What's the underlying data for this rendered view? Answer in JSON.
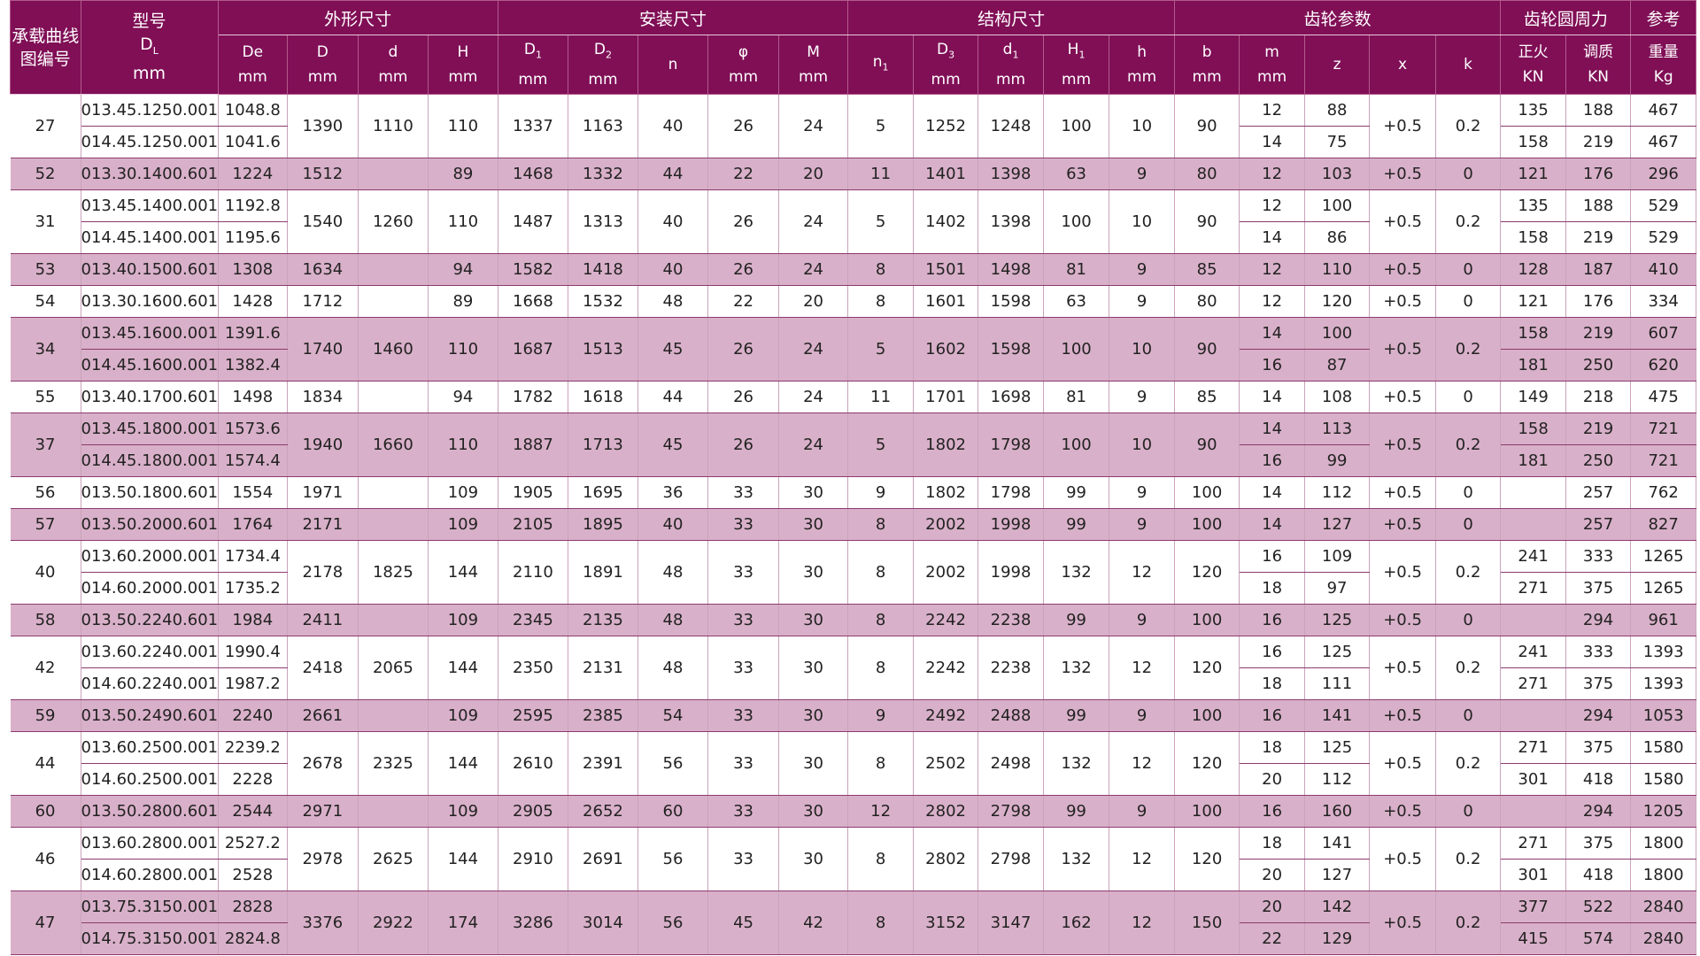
{
  "header": {
    "group1": {
      "label": "承载曲线图编号"
    },
    "group2": {
      "label": "型号",
      "sub": "DL",
      "unit": "mm"
    },
    "groups": [
      {
        "key": "outer",
        "label": "外形尺寸",
        "cols": [
          {
            "label": "De",
            "unit": "mm"
          },
          {
            "label": "D",
            "unit": "mm"
          },
          {
            "label": "d",
            "unit": "mm"
          },
          {
            "label": "H",
            "unit": "mm"
          }
        ]
      },
      {
        "key": "install",
        "label": "安装尺寸",
        "cols": [
          {
            "label": "D1",
            "unit": "mm"
          },
          {
            "label": "D2",
            "unit": "mm"
          },
          {
            "label": "n",
            "unit": ""
          },
          {
            "label": "φ",
            "unit": "mm"
          },
          {
            "label": "M",
            "unit": "mm"
          }
        ]
      },
      {
        "key": "struct",
        "label": "结构尺寸",
        "cols": [
          {
            "label": "n1",
            "unit": ""
          },
          {
            "label": "D3",
            "unit": "mm"
          },
          {
            "label": "d1",
            "unit": "mm"
          },
          {
            "label": "H1",
            "unit": "mm"
          },
          {
            "label": "h",
            "unit": "mm"
          }
        ]
      },
      {
        "key": "gear",
        "label": "齿轮参数",
        "cols": [
          {
            "label": "b",
            "unit": "mm"
          },
          {
            "label": "m",
            "unit": "mm"
          },
          {
            "label": "z",
            "unit": ""
          },
          {
            "label": "x",
            "unit": ""
          },
          {
            "label": "k",
            "unit": ""
          }
        ]
      },
      {
        "key": "force",
        "label": "齿轮圆周力",
        "cols": [
          {
            "label": "正火",
            "unit": "KN"
          },
          {
            "label": "调质",
            "unit": "KN"
          }
        ]
      },
      {
        "key": "weight",
        "label": "参考",
        "cols": [
          {
            "label": "重量",
            "unit": "Kg"
          }
        ]
      }
    ]
  },
  "groups": [
    {
      "id": "27",
      "pink": false,
      "D": "1390",
      "d": "1110",
      "H": "110",
      "D1": "1337",
      "D2": "1163",
      "n": "40",
      "phi": "26",
      "M": "24",
      "n1": "5",
      "D3": "1252",
      "d1": "1248",
      "H1": "100",
      "h": "10",
      "b": "90",
      "x": "+0.5",
      "k": "0.2",
      "rows": [
        {
          "model": "013.45.1250.001",
          "De": "1048.8",
          "m": "12",
          "z": "88",
          "f1": "135",
          "f2": "188",
          "w": "467"
        },
        {
          "model": "014.45.1250.001",
          "De": "1041.6",
          "m": "14",
          "z": "75",
          "f1": "158",
          "f2": "219",
          "w": "467"
        }
      ]
    },
    {
      "id": "52",
      "pink": true,
      "D": "1512",
      "d": "",
      "H": "89",
      "D1": "1468",
      "D2": "1332",
      "n": "44",
      "phi": "22",
      "M": "20",
      "n1": "11",
      "D3": "1401",
      "d1": "1398",
      "H1": "63",
      "h": "9",
      "b": "80",
      "x": "+0.5",
      "k": "0",
      "rows": [
        {
          "model": "013.30.1400.601",
          "De": "1224",
          "m": "12",
          "z": "103",
          "f1": "121",
          "f2": "176",
          "w": "296"
        }
      ]
    },
    {
      "id": "31",
      "pink": false,
      "D": "1540",
      "d": "1260",
      "H": "110",
      "D1": "1487",
      "D2": "1313",
      "n": "40",
      "phi": "26",
      "M": "24",
      "n1": "5",
      "D3": "1402",
      "d1": "1398",
      "H1": "100",
      "h": "10",
      "b": "90",
      "x": "+0.5",
      "k": "0.2",
      "rows": [
        {
          "model": "013.45.1400.001",
          "De": "1192.8",
          "m": "12",
          "z": "100",
          "f1": "135",
          "f2": "188",
          "w": "529"
        },
        {
          "model": "014.45.1400.001",
          "De": "1195.6",
          "m": "14",
          "z": "86",
          "f1": "158",
          "f2": "219",
          "w": "529"
        }
      ]
    },
    {
      "id": "53",
      "pink": true,
      "D": "1634",
      "d": "",
      "H": "94",
      "D1": "1582",
      "D2": "1418",
      "n": "40",
      "phi": "26",
      "M": "24",
      "n1": "8",
      "D3": "1501",
      "d1": "1498",
      "H1": "81",
      "h": "9",
      "b": "85",
      "x": "+0.5",
      "k": "0",
      "rows": [
        {
          "model": "013.40.1500.601",
          "De": "1308",
          "m": "12",
          "z": "110",
          "f1": "128",
          "f2": "187",
          "w": "410"
        }
      ]
    },
    {
      "id": "54",
      "pink": false,
      "D": "1712",
      "d": "",
      "H": "89",
      "D1": "1668",
      "D2": "1532",
      "n": "48",
      "phi": "22",
      "M": "20",
      "n1": "8",
      "D3": "1601",
      "d1": "1598",
      "H1": "63",
      "h": "9",
      "b": "80",
      "x": "+0.5",
      "k": "0",
      "rows": [
        {
          "model": "013.30.1600.601",
          "De": "1428",
          "m": "12",
          "z": "120",
          "f1": "121",
          "f2": "176",
          "w": "334"
        }
      ]
    },
    {
      "id": "34",
      "pink": true,
      "D": "1740",
      "d": "1460",
      "H": "110",
      "D1": "1687",
      "D2": "1513",
      "n": "45",
      "phi": "26",
      "M": "24",
      "n1": "5",
      "D3": "1602",
      "d1": "1598",
      "H1": "100",
      "h": "10",
      "b": "90",
      "x": "+0.5",
      "k": "0.2",
      "rows": [
        {
          "model": "013.45.1600.001",
          "De": "1391.6",
          "m": "14",
          "z": "100",
          "f1": "158",
          "f2": "219",
          "w": "607"
        },
        {
          "model": "014.45.1600.001",
          "De": "1382.4",
          "m": "16",
          "z": "87",
          "f1": "181",
          "f2": "250",
          "w": "620"
        }
      ]
    },
    {
      "id": "55",
      "pink": false,
      "D": "1834",
      "d": "",
      "H": "94",
      "D1": "1782",
      "D2": "1618",
      "n": "44",
      "phi": "26",
      "M": "24",
      "n1": "11",
      "D3": "1701",
      "d1": "1698",
      "H1": "81",
      "h": "9",
      "b": "85",
      "x": "+0.5",
      "k": "0",
      "rows": [
        {
          "model": "013.40.1700.601",
          "De": "1498",
          "m": "14",
          "z": "108",
          "f1": "149",
          "f2": "218",
          "w": "475"
        }
      ]
    },
    {
      "id": "37",
      "pink": true,
      "D": "1940",
      "d": "1660",
      "H": "110",
      "D1": "1887",
      "D2": "1713",
      "n": "45",
      "phi": "26",
      "M": "24",
      "n1": "5",
      "D3": "1802",
      "d1": "1798",
      "H1": "100",
      "h": "10",
      "b": "90",
      "x": "+0.5",
      "k": "0.2",
      "rows": [
        {
          "model": "013.45.1800.001",
          "De": "1573.6",
          "m": "14",
          "z": "113",
          "f1": "158",
          "f2": "219",
          "w": "721"
        },
        {
          "model": "014.45.1800.001",
          "De": "1574.4",
          "m": "16",
          "z": "99",
          "f1": "181",
          "f2": "250",
          "w": "721"
        }
      ]
    },
    {
      "id": "56",
      "pink": false,
      "D": "1971",
      "d": "",
      "H": "109",
      "D1": "1905",
      "D2": "1695",
      "n": "36",
      "phi": "33",
      "M": "30",
      "n1": "9",
      "D3": "1802",
      "d1": "1798",
      "H1": "99",
      "h": "9",
      "b": "100",
      "x": "+0.5",
      "k": "0",
      "rows": [
        {
          "model": "013.50.1800.601",
          "De": "1554",
          "m": "14",
          "z": "112",
          "f1": "",
          "f2": "257",
          "w": "762"
        }
      ]
    },
    {
      "id": "57",
      "pink": true,
      "D": "2171",
      "d": "",
      "H": "109",
      "D1": "2105",
      "D2": "1895",
      "n": "40",
      "phi": "33",
      "M": "30",
      "n1": "8",
      "D3": "2002",
      "d1": "1998",
      "H1": "99",
      "h": "9",
      "b": "100",
      "x": "+0.5",
      "k": "0",
      "rows": [
        {
          "model": "013.50.2000.601",
          "De": "1764",
          "m": "14",
          "z": "127",
          "f1": "",
          "f2": "257",
          "w": "827"
        }
      ]
    },
    {
      "id": "40",
      "pink": false,
      "D": "2178",
      "d": "1825",
      "H": "144",
      "D1": "2110",
      "D2": "1891",
      "n": "48",
      "phi": "33",
      "M": "30",
      "n1": "8",
      "D3": "2002",
      "d1": "1998",
      "H1": "132",
      "h": "12",
      "b": "120",
      "x": "+0.5",
      "k": "0.2",
      "rows": [
        {
          "model": "013.60.2000.001",
          "De": "1734.4",
          "m": "16",
          "z": "109",
          "f1": "241",
          "f2": "333",
          "w": "1265"
        },
        {
          "model": "014.60.2000.001",
          "De": "1735.2",
          "m": "18",
          "z": "97",
          "f1": "271",
          "f2": "375",
          "w": "1265"
        }
      ]
    },
    {
      "id": "58",
      "pink": true,
      "D": "2411",
      "d": "",
      "H": "109",
      "D1": "2345",
      "D2": "2135",
      "n": "48",
      "phi": "33",
      "M": "30",
      "n1": "8",
      "D3": "2242",
      "d1": "2238",
      "H1": "99",
      "h": "9",
      "b": "100",
      "x": "+0.5",
      "k": "0",
      "rows": [
        {
          "model": "013.50.2240.601",
          "De": "1984",
          "m": "16",
          "z": "125",
          "f1": "",
          "f2": "294",
          "w": "961"
        }
      ]
    },
    {
      "id": "42",
      "pink": false,
      "D": "2418",
      "d": "2065",
      "H": "144",
      "D1": "2350",
      "D2": "2131",
      "n": "48",
      "phi": "33",
      "M": "30",
      "n1": "8",
      "D3": "2242",
      "d1": "2238",
      "H1": "132",
      "h": "12",
      "b": "120",
      "x": "+0.5",
      "k": "0.2",
      "rows": [
        {
          "model": "013.60.2240.001",
          "De": "1990.4",
          "m": "16",
          "z": "125",
          "f1": "241",
          "f2": "333",
          "w": "1393"
        },
        {
          "model": "014.60.2240.001",
          "De": "1987.2",
          "m": "18",
          "z": "111",
          "f1": "271",
          "f2": "375",
          "w": "1393"
        }
      ]
    },
    {
      "id": "59",
      "pink": true,
      "D": "2661",
      "d": "",
      "H": "109",
      "D1": "2595",
      "D2": "2385",
      "n": "54",
      "phi": "33",
      "M": "30",
      "n1": "9",
      "D3": "2492",
      "d1": "2488",
      "H1": "99",
      "h": "9",
      "b": "100",
      "x": "+0.5",
      "k": "0",
      "rows": [
        {
          "model": "013.50.2490.601",
          "De": "2240",
          "m": "16",
          "z": "141",
          "f1": "",
          "f2": "294",
          "w": "1053"
        }
      ]
    },
    {
      "id": "44",
      "pink": false,
      "D": "2678",
      "d": "2325",
      "H": "144",
      "D1": "2610",
      "D2": "2391",
      "n": "56",
      "phi": "33",
      "M": "30",
      "n1": "8",
      "D3": "2502",
      "d1": "2498",
      "H1": "132",
      "h": "12",
      "b": "120",
      "x": "+0.5",
      "k": "0.2",
      "rows": [
        {
          "model": "013.60.2500.001",
          "De": "2239.2",
          "m": "18",
          "z": "125",
          "f1": "271",
          "f2": "375",
          "w": "1580"
        },
        {
          "model": "014.60.2500.001",
          "De": "2228",
          "m": "20",
          "z": "112",
          "f1": "301",
          "f2": "418",
          "w": "1580"
        }
      ]
    },
    {
      "id": "60",
      "pink": true,
      "D": "2971",
      "d": "",
      "H": "109",
      "D1": "2905",
      "D2": "2652",
      "n": "60",
      "phi": "33",
      "M": "30",
      "n1": "12",
      "D3": "2802",
      "d1": "2798",
      "H1": "99",
      "h": "9",
      "b": "100",
      "x": "+0.5",
      "k": "0",
      "rows": [
        {
          "model": "013.50.2800.601",
          "De": "2544",
          "m": "16",
          "z": "160",
          "f1": "",
          "f2": "294",
          "w": "1205"
        }
      ]
    },
    {
      "id": "46",
      "pink": false,
      "D": "2978",
      "d": "2625",
      "H": "144",
      "D1": "2910",
      "D2": "2691",
      "n": "56",
      "phi": "33",
      "M": "30",
      "n1": "8",
      "D3": "2802",
      "d1": "2798",
      "H1": "132",
      "h": "12",
      "b": "120",
      "x": "+0.5",
      "k": "0.2",
      "rows": [
        {
          "model": "013.60.2800.001",
          "De": "2527.2",
          "m": "18",
          "z": "141",
          "f1": "271",
          "f2": "375",
          "w": "1800"
        },
        {
          "model": "014.60.2800.001",
          "De": "2528",
          "m": "20",
          "z": "127",
          "f1": "301",
          "f2": "418",
          "w": "1800"
        }
      ]
    },
    {
      "id": "47",
      "pink": true,
      "D": "3376",
      "d": "2922",
      "H": "174",
      "D1": "3286",
      "D2": "3014",
      "n": "56",
      "phi": "45",
      "M": "42",
      "n1": "8",
      "D3": "3152",
      "d1": "3147",
      "H1": "162",
      "h": "12",
      "b": "150",
      "x": "+0.5",
      "k": "0.2",
      "rows": [
        {
          "model": "013.75.3150.001",
          "De": "2828",
          "m": "20",
          "z": "142",
          "f1": "377",
          "f2": "522",
          "w": "2840"
        },
        {
          "model": "014.75.3150.001",
          "De": "2824.8",
          "m": "22",
          "z": "129",
          "f1": "415",
          "f2": "574",
          "w": "2840"
        }
      ]
    }
  ]
}
